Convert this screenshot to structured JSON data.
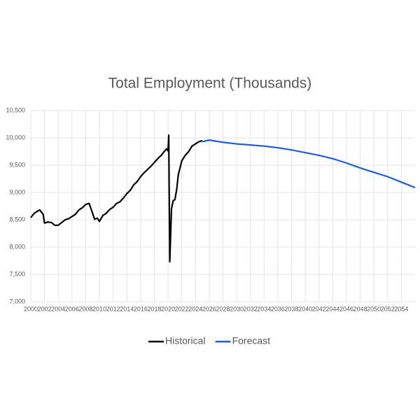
{
  "chart_data": {
    "type": "line",
    "title": "Total Employment (Thousands)",
    "xlim": [
      2000,
      2056
    ],
    "xticks": [
      2000,
      2002,
      2004,
      2006,
      2008,
      2010,
      2012,
      2014,
      2016,
      2018,
      2020,
      2022,
      2024,
      2026,
      2028,
      2030,
      2032,
      2034,
      2036,
      2038,
      2040,
      2042,
      2044,
      2046,
      2048,
      2050,
      2052,
      2054
    ],
    "ylim": [
      7000,
      10500
    ],
    "yticks": [
      {
        "value": 7000,
        "label": "7,000"
      },
      {
        "value": 7500,
        "label": "7,500"
      },
      {
        "value": 8000,
        "label": "8,000"
      },
      {
        "value": 8500,
        "label": "8,500"
      },
      {
        "value": 9000,
        "label": "9,000"
      },
      {
        "value": 9500,
        "label": "9,500"
      },
      {
        "value": 10000,
        "label": "10,000"
      },
      {
        "value": 10500,
        "label": "10,500"
      }
    ],
    "grid": true,
    "legend": "bottom",
    "series": [
      {
        "name": "Historical",
        "color": "#000000",
        "x": [
          2000,
          2000.5,
          2001,
          2001.3,
          2001.8,
          2002,
          2002.5,
          2003,
          2003.5,
          2004,
          2004.5,
          2005,
          2005.5,
          2006,
          2006.5,
          2007,
          2007.5,
          2008,
          2008.5,
          2009,
          2009.3,
          2009.7,
          2010,
          2010.5,
          2011,
          2011.5,
          2012,
          2012.5,
          2013,
          2013.5,
          2014,
          2014.5,
          2015,
          2015.5,
          2016,
          2016.5,
          2017,
          2017.5,
          2018,
          2018.5,
          2019,
          2019.5,
          2019.8,
          2020,
          2020.1,
          2020.25,
          2020.5,
          2020.75,
          2021,
          2021.25,
          2021.5,
          2021.75,
          2022,
          2022.5,
          2023,
          2023.5,
          2024,
          2024.5,
          2025
        ],
        "values": [
          8540,
          8620,
          8660,
          8680,
          8600,
          8440,
          8460,
          8450,
          8400,
          8400,
          8450,
          8500,
          8520,
          8560,
          8600,
          8680,
          8720,
          8780,
          8800,
          8620,
          8510,
          8530,
          8470,
          8580,
          8620,
          8690,
          8730,
          8800,
          8830,
          8900,
          8980,
          9040,
          9140,
          9200,
          9290,
          9360,
          9420,
          9480,
          9550,
          9620,
          9680,
          9760,
          9800,
          9760,
          10050,
          7730,
          8700,
          8850,
          8870,
          9050,
          9330,
          9450,
          9580,
          9680,
          9750,
          9850,
          9890,
          9930,
          9950
        ]
      },
      {
        "name": "Forecast",
        "color": "#1f5fd6",
        "x": [
          2025,
          2026,
          2028,
          2030,
          2032,
          2034,
          2036,
          2038,
          2040,
          2042,
          2044,
          2046,
          2048,
          2050,
          2052,
          2054,
          2056
        ],
        "values": [
          9930,
          9960,
          9920,
          9890,
          9870,
          9850,
          9820,
          9780,
          9730,
          9680,
          9620,
          9540,
          9450,
          9370,
          9290,
          9190,
          9090
        ]
      }
    ]
  }
}
